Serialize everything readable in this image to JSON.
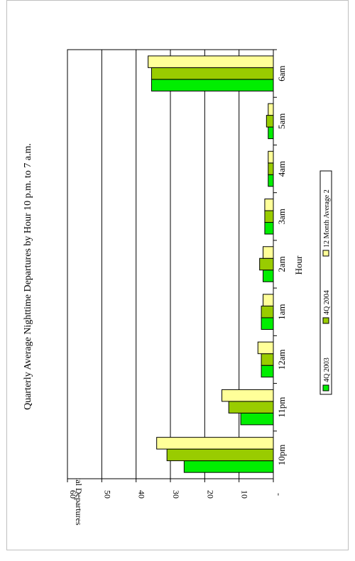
{
  "chart_data": {
    "type": "bar",
    "orientation": "rotated-90-clockwise",
    "title": "Quarterly Average Nighttime Departures by Hour 10 p.m. to 7 a.m.",
    "xlabel": "Hour",
    "ylabel": "Count of Total Departures",
    "categories": [
      "10pm",
      "11pm",
      "12am",
      "1am",
      "2am",
      "3am",
      "4am",
      "5am",
      "6am"
    ],
    "ylim": [
      0,
      60
    ],
    "y_ticks": [
      "-",
      "10",
      "20",
      "30",
      "40",
      "50",
      "60"
    ],
    "series": [
      {
        "name": "4Q 2003",
        "color": "#00ee00",
        "values": [
          26,
          9.5,
          3.5,
          3.5,
          3,
          2.5,
          1.5,
          1.5,
          35.5
        ]
      },
      {
        "name": "4Q 2004",
        "color": "#99cc00",
        "values": [
          31,
          13,
          3.5,
          3.5,
          4,
          2.5,
          1.5,
          2,
          35.5
        ]
      },
      {
        "name": "12 Month Average 2",
        "color": "#ffff99",
        "values": [
          34,
          15,
          4.5,
          3,
          3,
          2.5,
          1.5,
          1.5,
          36.5
        ]
      }
    ],
    "grid": true,
    "legend_position": "bottom"
  }
}
